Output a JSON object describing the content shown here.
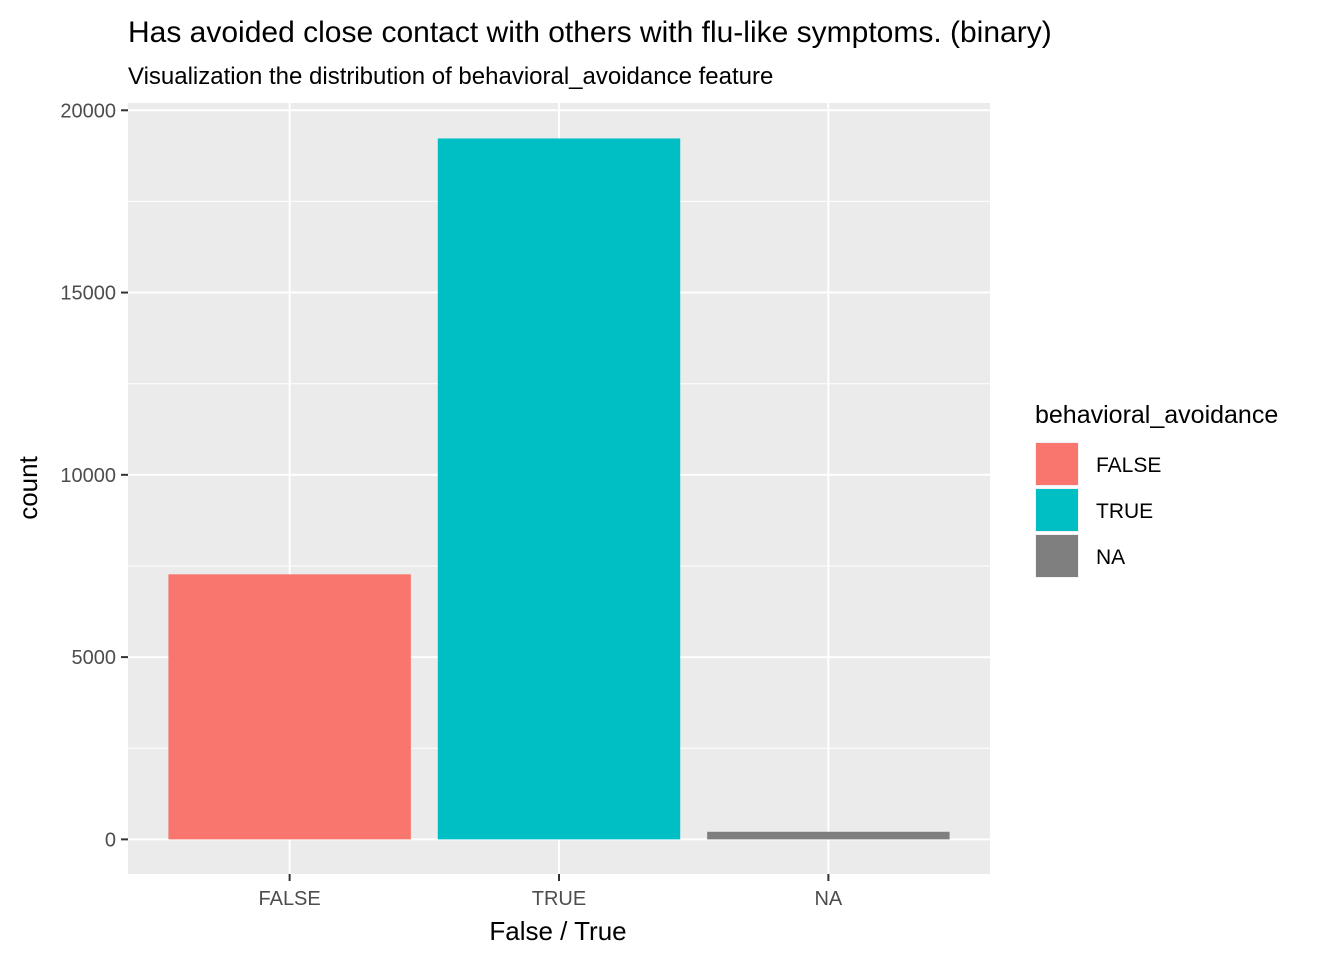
{
  "chart_data": {
    "type": "bar",
    "title": "Has avoided close contact with others with flu-like symptoms. (binary)",
    "subtitle": "Visualization the distribution of behavioral_avoidance feature",
    "xlabel": "False / True",
    "ylabel": "count",
    "categories": [
      "FALSE",
      "TRUE",
      "NA"
    ],
    "values": [
      7271,
      19228,
      208
    ],
    "colors": [
      "#F8766D",
      "#00BFC4",
      "#7F7F7F"
    ],
    "ylim": [
      -950,
      20200
    ],
    "yticks": [
      0,
      5000,
      10000,
      15000,
      20000
    ],
    "ytick_labels": [
      "0",
      "5000",
      "10000",
      "15000",
      "20000"
    ],
    "grid": true,
    "panel_background": "#EBEBEB",
    "legend": {
      "title": "behavioral_avoidance",
      "position": "right",
      "items": [
        {
          "label": "FALSE",
          "color": "#F8766D"
        },
        {
          "label": "TRUE",
          "color": "#00BFC4"
        },
        {
          "label": "NA",
          "color": "#7F7F7F"
        }
      ]
    }
  }
}
